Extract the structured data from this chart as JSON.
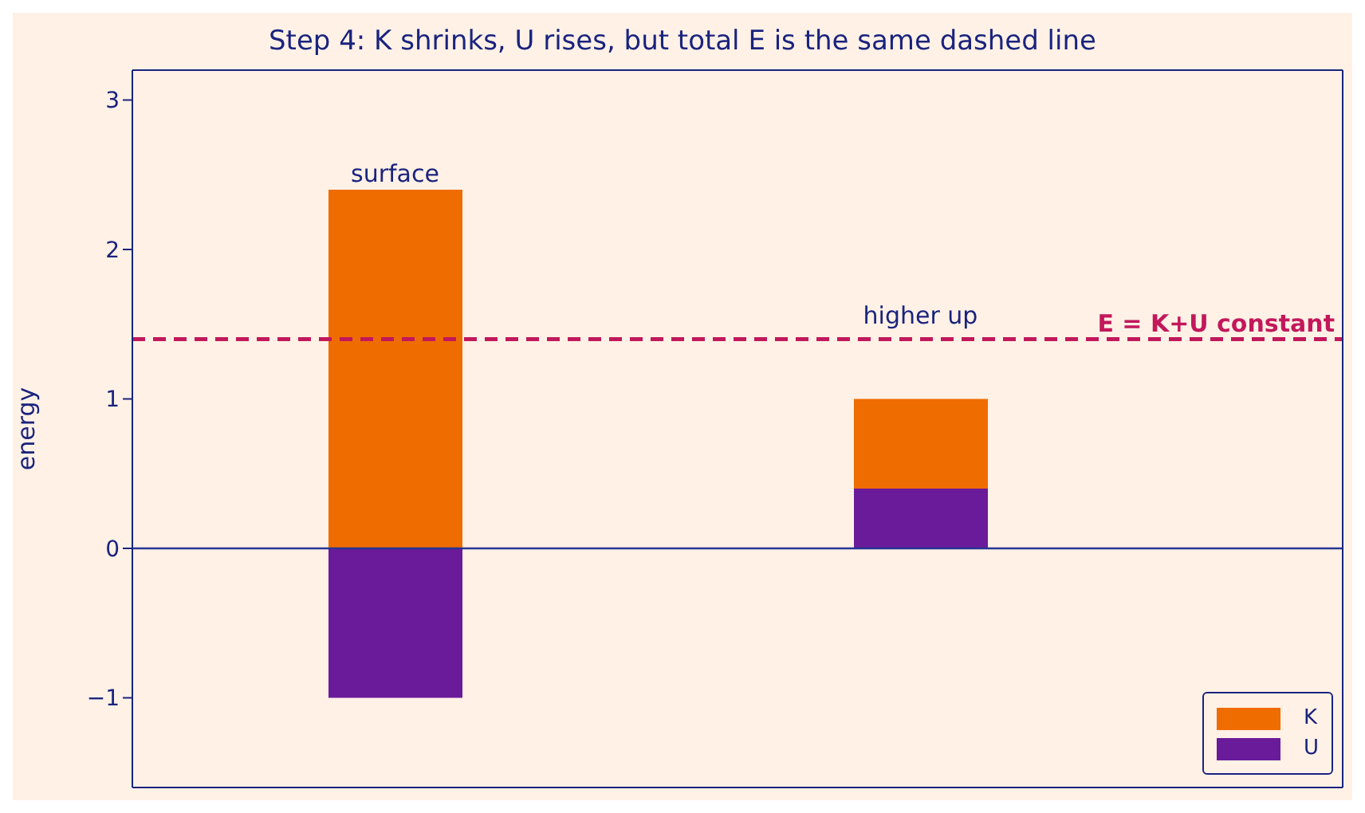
{
  "chart_data": {
    "type": "bar",
    "title": "Step 4: K shrinks, U rises, but total E is the same dashed line",
    "ylabel": "energy",
    "categories": [
      null,
      null
    ],
    "stacked": true,
    "series": [
      {
        "name": "U",
        "color": "#6a1b9a",
        "values": [
          -1.0,
          0.4
        ]
      },
      {
        "name": "K",
        "color": "#ef6c00",
        "values": [
          2.4,
          0.6
        ]
      }
    ],
    "ylim": [
      -1.6,
      3.2
    ],
    "yticks": [
      {
        "value": -1,
        "label": "−1"
      },
      0,
      1,
      2,
      3
    ],
    "tick_labels": "y",
    "ref_lines": [
      {
        "axis": "y",
        "value": 1.4,
        "label": "E = K+U constant",
        "color": "#c2185b",
        "line_style": "dashed"
      },
      {
        "axis": "y",
        "value": 0,
        "label": null,
        "color": "#283593",
        "line_style": "solid"
      }
    ],
    "annotations": [
      {
        "text": "surface",
        "y": 2.4
      },
      {
        "text": "higher up",
        "y": 1.45
      }
    ],
    "legend": "bottom right",
    "grid": false
  }
}
